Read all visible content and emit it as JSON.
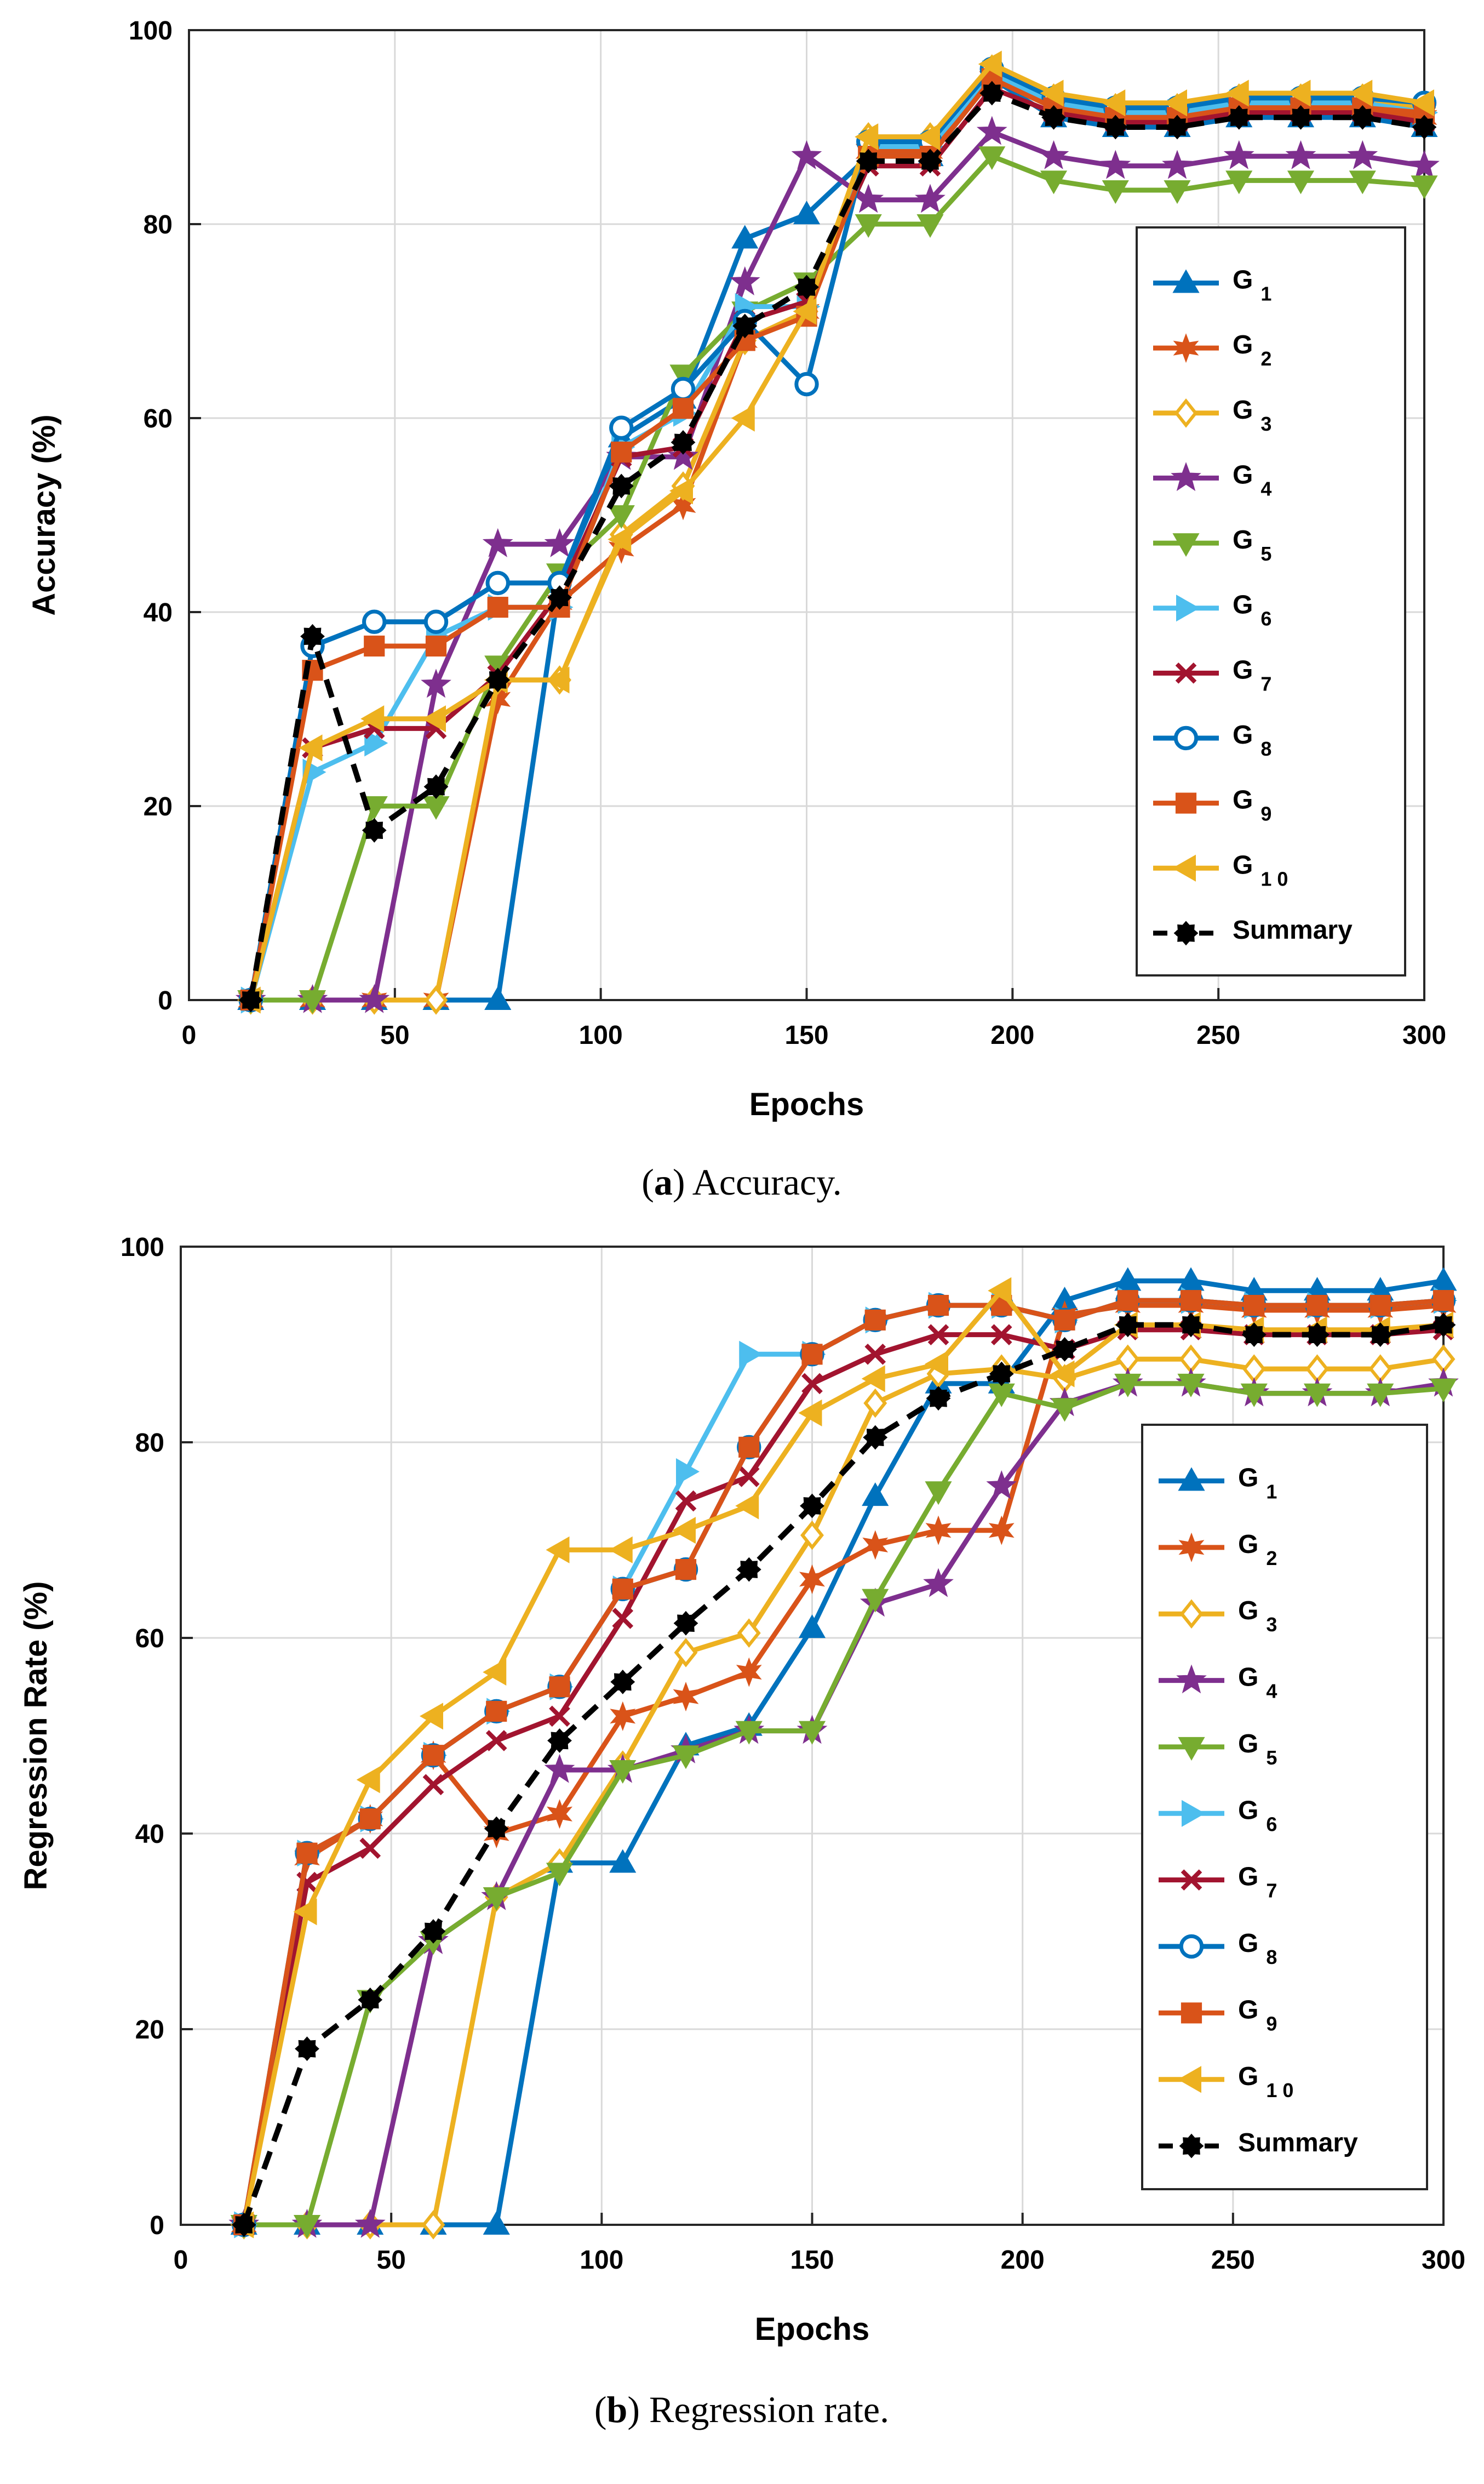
{
  "chart_data": [
    {
      "type": "line",
      "caption_letter": "a",
      "caption_text": ") Accuracy.",
      "caption_open": "(",
      "title": "",
      "xlabel": "Epochs",
      "ylabel": "Accuracy (%)",
      "xlim": [
        0,
        300
      ],
      "ylim": [
        0,
        100
      ],
      "xticks": [
        "0",
        "50",
        "100",
        "150",
        "200",
        "250",
        "300"
      ],
      "yticks": [
        "0",
        "20",
        "40",
        "60",
        "80",
        "100"
      ],
      "grid": true,
      "legend_position": "right",
      "x": [
        15,
        30,
        45,
        60,
        75,
        90,
        105,
        120,
        135,
        150,
        165,
        180,
        195,
        210,
        225,
        240,
        255,
        270,
        285,
        300
      ],
      "series": [
        {
          "name": "G",
          "sub": "1",
          "color": "#0072BD",
          "marker": "triangle-up",
          "values": [
            0,
            0,
            0,
            0,
            0,
            43,
            58,
            62,
            78.5,
            81,
            87,
            87,
            95,
            91,
            90,
            90,
            91,
            91,
            91,
            90
          ]
        },
        {
          "name": "G",
          "sub": "2",
          "color": "#D95319",
          "marker": "star6",
          "values": [
            0,
            0,
            0,
            0,
            31,
            41,
            46.5,
            51,
            68,
            71,
            87.5,
            87.5,
            95,
            92,
            91,
            91,
            92,
            92,
            92,
            91
          ]
        },
        {
          "name": "G",
          "sub": "3",
          "color": "#EDB120",
          "marker": "diamond",
          "values": [
            0,
            0,
            0,
            0,
            33,
            33,
            48,
            53,
            68,
            71,
            89,
            89,
            96,
            93,
            92,
            92,
            93,
            93,
            93,
            92
          ]
        },
        {
          "name": "G",
          "sub": "4",
          "color": "#7E2F8E",
          "marker": "star5",
          "values": [
            0,
            0,
            0,
            32.5,
            47,
            47,
            56,
            56,
            74,
            87,
            82.5,
            82.5,
            89.5,
            87,
            86,
            86,
            87,
            87,
            87,
            86
          ]
        },
        {
          "name": "G",
          "sub": "5",
          "color": "#77AC30",
          "marker": "triangle-down",
          "values": [
            0,
            0,
            20,
            20,
            34.5,
            44,
            50,
            64.5,
            71,
            74,
            80,
            80,
            87,
            84.5,
            83.5,
            83.5,
            84.5,
            84.5,
            84.5,
            84
          ]
        },
        {
          "name": "G",
          "sub": "6",
          "color": "#4DBEEE",
          "marker": "triangle-right",
          "values": [
            0,
            23.5,
            26.5,
            37.5,
            40.5,
            40.5,
            57,
            60.5,
            71.5,
            71.5,
            88,
            88,
            95.5,
            92.5,
            91.5,
            91.5,
            92.5,
            92.5,
            92.5,
            91.5
          ]
        },
        {
          "name": "G",
          "sub": "7",
          "color": "#A2142F",
          "marker": "x",
          "values": [
            0,
            26,
            28,
            28,
            33.5,
            42,
            56,
            57,
            70,
            72,
            86,
            86,
            94,
            91.5,
            90.5,
            90.5,
            91.5,
            91.5,
            91.5,
            90.5
          ]
        },
        {
          "name": "G",
          "sub": "8",
          "color": "#0072BD",
          "marker": "circle",
          "values": [
            0,
            36.5,
            39,
            39,
            43,
            43,
            59,
            63,
            70,
            63.5,
            88.5,
            88.5,
            96,
            93,
            92,
            92,
            93,
            93,
            93,
            92.5
          ]
        },
        {
          "name": "G",
          "sub": "9",
          "color": "#D95319",
          "marker": "square",
          "values": [
            0,
            34,
            36.5,
            36.5,
            40.5,
            40.5,
            56.5,
            61,
            68,
            70.5,
            87,
            87,
            95,
            92,
            91,
            91,
            92,
            92,
            92,
            91.5
          ]
        },
        {
          "name": "G",
          "sub": "1 0",
          "color": "#EDB120",
          "marker": "triangle-left",
          "values": [
            0,
            26,
            29,
            29,
            33,
            33,
            47.5,
            52.5,
            60,
            71,
            89,
            89,
            96.5,
            93.5,
            92.5,
            92.5,
            93.5,
            93.5,
            93.5,
            92.5
          ]
        },
        {
          "name": "Summary",
          "sub": "",
          "color": "#000000",
          "marker": "dot-dashed",
          "values": [
            0,
            37.5,
            17.5,
            22,
            33,
            41.5,
            53,
            57.5,
            69.5,
            73.5,
            86.5,
            86.5,
            93.5,
            91,
            90,
            90,
            91,
            91,
            91,
            90
          ]
        }
      ]
    },
    {
      "type": "line",
      "caption_letter": "b",
      "caption_text": ") Regression rate.",
      "caption_open": "(",
      "title": "",
      "xlabel": "Epochs",
      "ylabel": "Regression Rate (%)",
      "xlim": [
        0,
        300
      ],
      "ylim": [
        0,
        100
      ],
      "xticks": [
        "0",
        "50",
        "100",
        "150",
        "200",
        "250",
        "300"
      ],
      "yticks": [
        "0",
        "20",
        "40",
        "60",
        "80",
        "100"
      ],
      "grid": true,
      "legend_position": "right",
      "x": [
        15,
        30,
        45,
        60,
        75,
        90,
        105,
        120,
        135,
        150,
        165,
        180,
        195,
        210,
        225,
        240,
        255,
        270,
        285,
        300
      ],
      "series": [
        {
          "name": "G",
          "sub": "1",
          "color": "#0072BD",
          "marker": "triangle-up",
          "values": [
            0,
            0,
            0,
            0,
            0,
            37,
            37,
            49,
            51,
            61,
            74.5,
            86,
            86,
            94.5,
            96.5,
            96.5,
            95.5,
            95.5,
            95.5,
            96.5
          ]
        },
        {
          "name": "G",
          "sub": "2",
          "color": "#D95319",
          "marker": "star6",
          "values": [
            0,
            37.5,
            41.5,
            48,
            40,
            42,
            52,
            54,
            56.5,
            66,
            69.5,
            71,
            71,
            93,
            94,
            94,
            93.5,
            93.5,
            93.5,
            94
          ]
        },
        {
          "name": "G",
          "sub": "3",
          "color": "#EDB120",
          "marker": "diamond",
          "values": [
            0,
            0,
            0,
            0,
            33.5,
            37,
            47,
            58.5,
            60.5,
            70.5,
            84,
            87,
            87.5,
            86.5,
            88.5,
            88.5,
            87.5,
            87.5,
            87.5,
            88.5
          ]
        },
        {
          "name": "G",
          "sub": "4",
          "color": "#7E2F8E",
          "marker": "star5",
          "values": [
            0,
            0,
            0,
            29,
            33.5,
            46.5,
            46.5,
            48.5,
            50.5,
            50.5,
            63.5,
            65.5,
            75.5,
            84,
            86,
            86,
            85,
            85,
            85,
            86
          ]
        },
        {
          "name": "G",
          "sub": "5",
          "color": "#77AC30",
          "marker": "triangle-down",
          "values": [
            0,
            0,
            23,
            29,
            33.5,
            36,
            46.5,
            48,
            50.5,
            50.5,
            64,
            75,
            85,
            83.5,
            86,
            86,
            85,
            85,
            85,
            85.5
          ]
        },
        {
          "name": "G",
          "sub": "6",
          "color": "#4DBEEE",
          "marker": "triangle-right",
          "values": [
            0,
            38,
            41.5,
            48,
            52.5,
            55,
            65,
            77,
            89,
            89,
            92.5,
            94,
            94,
            92.5,
            94.5,
            94.5,
            94,
            94,
            94,
            94.5
          ]
        },
        {
          "name": "G",
          "sub": "7",
          "color": "#A2142F",
          "marker": "x",
          "values": [
            0,
            35,
            38.5,
            45,
            49.5,
            52,
            62,
            74,
            76.5,
            86,
            89,
            91,
            91,
            89.5,
            91.5,
            91.5,
            91,
            91,
            91,
            91.5
          ]
        },
        {
          "name": "G",
          "sub": "8",
          "color": "#0072BD",
          "marker": "circle",
          "values": [
            0,
            38,
            41.5,
            48,
            52.5,
            55,
            65,
            67,
            79.5,
            89,
            92.5,
            94,
            94,
            92.5,
            94.5,
            94.5,
            94,
            94,
            94,
            94.5
          ]
        },
        {
          "name": "G",
          "sub": "9",
          "color": "#D95319",
          "marker": "square",
          "values": [
            0,
            38,
            41.5,
            48,
            52.5,
            55,
            65,
            67,
            79.5,
            89,
            92.5,
            94,
            94,
            92.5,
            94.5,
            94.5,
            94,
            94,
            94,
            94.5
          ]
        },
        {
          "name": "G",
          "sub": "1 0",
          "color": "#EDB120",
          "marker": "triangle-left",
          "values": [
            0,
            32,
            45.5,
            52,
            56.5,
            69,
            69,
            71,
            73.5,
            83,
            86.5,
            88,
            95.5,
            87,
            92,
            92,
            91.5,
            91.5,
            91.5,
            92
          ]
        },
        {
          "name": "Summary",
          "sub": "",
          "color": "#000000",
          "marker": "dot-dashed",
          "values": [
            0,
            18,
            23,
            30,
            40.5,
            49.5,
            55.5,
            61.5,
            67,
            73.5,
            80.5,
            84.5,
            87,
            89.5,
            92,
            92,
            91,
            91,
            91,
            92
          ]
        }
      ]
    }
  ]
}
